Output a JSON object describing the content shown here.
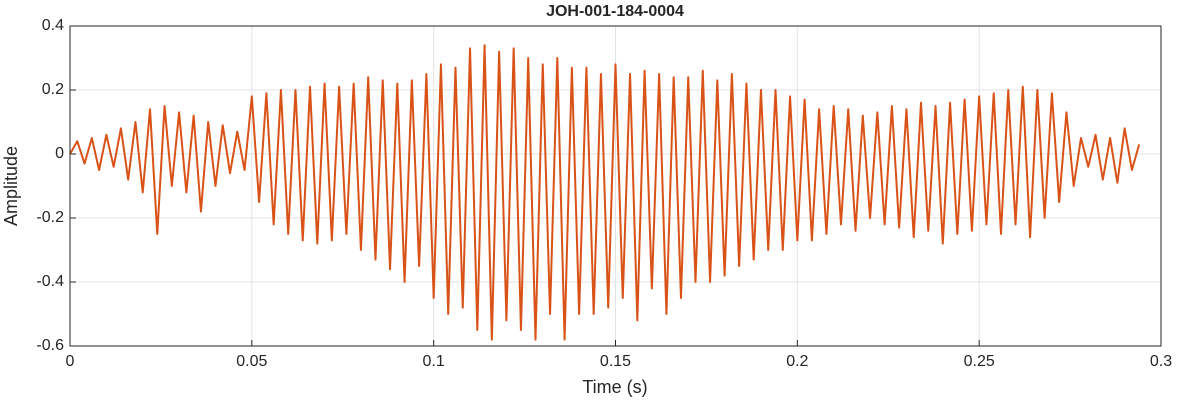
{
  "chart_data": {
    "type": "line",
    "title": "JOH-001-184-0004",
    "xlabel": "Time (s)",
    "ylabel": "Amplitude",
    "x": [
      0,
      0.002,
      0.004,
      0.006,
      0.008,
      0.01,
      0.012,
      0.014,
      0.016,
      0.018,
      0.02,
      0.022,
      0.024,
      0.026,
      0.028,
      0.03,
      0.032,
      0.034,
      0.036,
      0.038,
      0.04,
      0.042,
      0.044,
      0.046,
      0.048,
      0.05,
      0.052,
      0.054,
      0.056,
      0.058,
      0.06,
      0.062,
      0.064,
      0.066,
      0.068,
      0.07,
      0.072,
      0.074,
      0.076,
      0.078,
      0.08,
      0.082,
      0.084,
      0.086,
      0.088,
      0.09,
      0.092,
      0.094,
      0.096,
      0.098,
      0.1,
      0.102,
      0.104,
      0.106,
      0.108,
      0.11,
      0.112,
      0.114,
      0.116,
      0.118,
      0.12,
      0.122,
      0.124,
      0.126,
      0.128,
      0.13,
      0.132,
      0.134,
      0.136,
      0.138,
      0.14,
      0.142,
      0.144,
      0.146,
      0.148,
      0.15,
      0.152,
      0.154,
      0.156,
      0.158,
      0.16,
      0.162,
      0.164,
      0.166,
      0.168,
      0.17,
      0.172,
      0.174,
      0.176,
      0.178,
      0.18,
      0.182,
      0.184,
      0.186,
      0.188,
      0.19,
      0.192,
      0.194,
      0.196,
      0.198,
      0.2,
      0.202,
      0.204,
      0.206,
      0.208,
      0.21,
      0.212,
      0.214,
      0.216,
      0.218,
      0.22,
      0.222,
      0.224,
      0.226,
      0.228,
      0.23,
      0.232,
      0.234,
      0.236,
      0.238,
      0.24,
      0.242,
      0.244,
      0.246,
      0.248,
      0.25,
      0.252,
      0.254,
      0.256,
      0.258,
      0.26,
      0.262,
      0.264,
      0.266,
      0.268,
      0.27,
      0.272,
      0.274,
      0.276,
      0.278,
      0.28,
      0.282,
      0.284,
      0.286,
      0.288,
      0.29,
      0.292,
      0.294
    ],
    "series": [
      {
        "name": "Amplitude",
        "color": "#d95319",
        "values": [
          0,
          0.04,
          -0.03,
          0.05,
          -0.05,
          0.06,
          -0.04,
          0.08,
          -0.08,
          0.1,
          -0.12,
          0.14,
          -0.25,
          0.15,
          -0.1,
          0.13,
          -0.12,
          0.12,
          -0.18,
          0.1,
          -0.1,
          0.09,
          -0.06,
          0.07,
          -0.05,
          0.18,
          -0.15,
          0.19,
          -0.22,
          0.2,
          -0.25,
          0.2,
          -0.27,
          0.21,
          -0.28,
          0.22,
          -0.27,
          0.21,
          -0.25,
          0.22,
          -0.3,
          0.24,
          -0.33,
          0.23,
          -0.36,
          0.22,
          -0.4,
          0.23,
          -0.35,
          0.25,
          -0.45,
          0.28,
          -0.5,
          0.27,
          -0.48,
          0.33,
          -0.55,
          0.34,
          -0.58,
          0.32,
          -0.52,
          0.33,
          -0.55,
          0.3,
          -0.58,
          0.28,
          -0.5,
          0.3,
          -0.58,
          0.27,
          -0.5,
          0.27,
          -0.5,
          0.25,
          -0.48,
          0.28,
          -0.45,
          0.25,
          -0.52,
          0.26,
          -0.42,
          0.25,
          -0.5,
          0.24,
          -0.45,
          0.24,
          -0.4,
          0.26,
          -0.4,
          0.23,
          -0.38,
          0.25,
          -0.35,
          0.22,
          -0.33,
          0.2,
          -0.3,
          0.2,
          -0.3,
          0.18,
          -0.27,
          0.17,
          -0.27,
          0.14,
          -0.25,
          0.15,
          -0.22,
          0.14,
          -0.24,
          0.12,
          -0.2,
          0.13,
          -0.22,
          0.15,
          -0.23,
          0.14,
          -0.26,
          0.16,
          -0.24,
          0.15,
          -0.28,
          0.16,
          -0.25,
          0.17,
          -0.24,
          0.18,
          -0.22,
          0.19,
          -0.25,
          0.2,
          -0.22,
          0.21,
          -0.26,
          0.2,
          -0.2,
          0.19,
          -0.15,
          0.13,
          -0.1,
          0.05,
          -0.04,
          0.06,
          -0.08,
          0.05,
          -0.09,
          0.08,
          -0.05,
          0.03
        ]
      }
    ],
    "xlim": [
      0,
      0.3
    ],
    "xticks": [
      0,
      0.05,
      0.1,
      0.15,
      0.2,
      0.25,
      0.3
    ],
    "ylim": [
      -0.6,
      0.4
    ],
    "yticks": [
      -0.6,
      -0.4,
      -0.2,
      0,
      0.2,
      0.4
    ],
    "grid": true
  }
}
